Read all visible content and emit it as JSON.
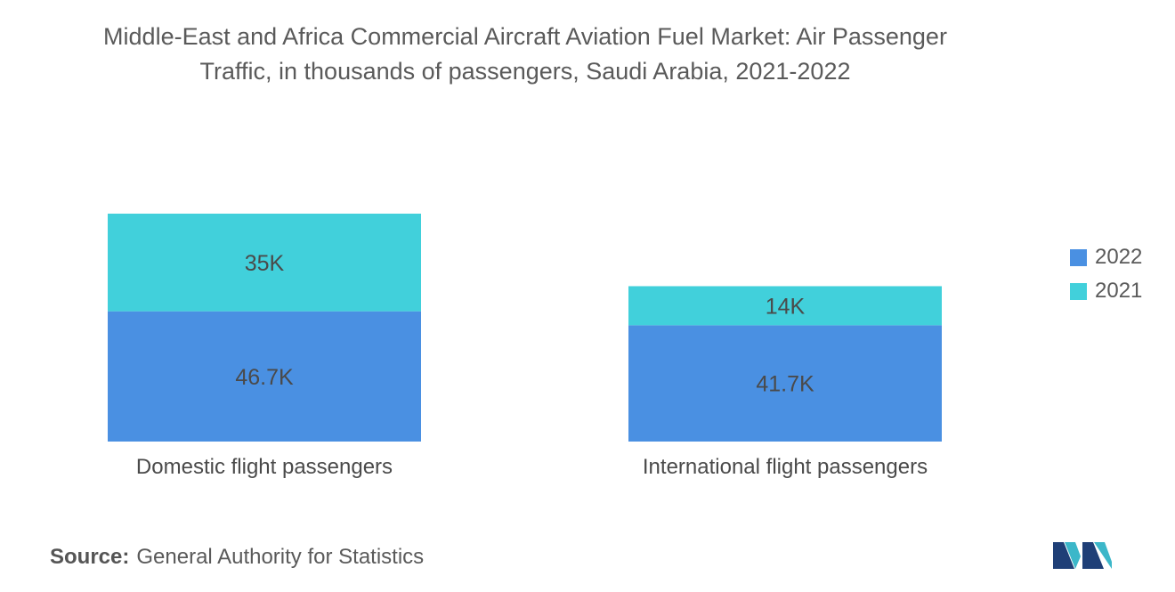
{
  "title_line1": "Middle-East and Africa Commercial Aircraft Aviation Fuel Market: Air Passenger",
  "title_line2": "Traffic, in thousands of passengers, Saudi Arabia, 2021-2022",
  "source_label": "Source:",
  "source_text": "General Authority for Statistics",
  "logo_icon": "mordor-intelligence-logo-icon",
  "colors": {
    "y2022": "#4a90e2",
    "y2021": "#41d0db"
  },
  "chart_data": {
    "type": "bar",
    "stacked": true,
    "categories": [
      "Domestic flight passengers",
      "International flight passengers"
    ],
    "series": [
      {
        "name": "2022",
        "values": [
          46.7,
          41.7
        ],
        "labels": [
          "46.7K",
          "41.7K"
        ]
      },
      {
        "name": "2021",
        "values": [
          35,
          14
        ],
        "labels": [
          "35K",
          "14K"
        ]
      }
    ],
    "title": "Middle-East and Africa Commercial Aircraft Aviation Fuel Market: Air Passenger Traffic, in thousands of passengers, Saudi Arabia, 2021-2022",
    "xlabel": "",
    "ylabel": "",
    "ylim": [
      0,
      81.7
    ],
    "grid": false,
    "legend": "right"
  }
}
